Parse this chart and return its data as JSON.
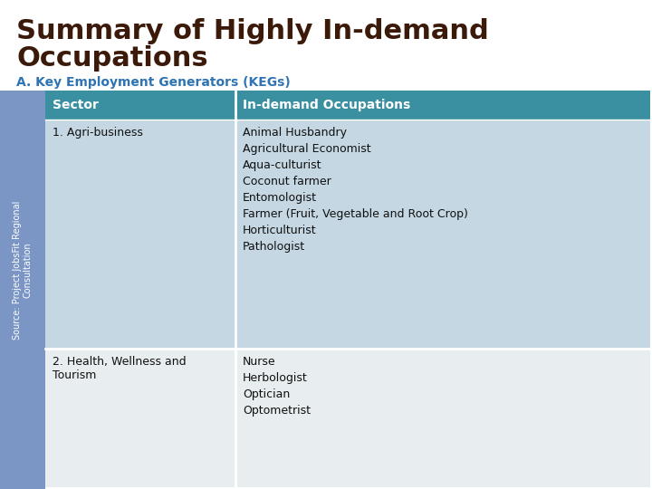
{
  "title_line1": "Summary of Highly In-demand",
  "title_line2": "Occupations",
  "title_color": "#3B1A0A",
  "subtitle": "A. Key Employment Generators (KEGs)",
  "subtitle_color": "#2E74B5",
  "header_bg_color": "#3A8FA0",
  "header_text_color": "#FFFFFF",
  "col1_header": "Sector",
  "col2_header": "In-demand Occupations",
  "row1_sector": "1. Agri-business",
  "row1_occupations": [
    "Animal Husbandry",
    "Agricultural Economist",
    "Aqua-culturist",
    "Coconut farmer",
    "Entomologist",
    "Farmer (Fruit, Vegetable and Root Crop)",
    "Horticulturist",
    "Pathologist"
  ],
  "row2_sector": "2. Health, Wellness and\nTourism",
  "row2_occupations": [
    "Nurse",
    "Herbologist",
    "Optician",
    "Optometrist"
  ],
  "row1_bg": "#C5D7E3",
  "row2_bg": "#E8EDEF",
  "sidebar_color": "#7B96C4",
  "source_text": "Source: Project JobsFit Regional\nConsultation",
  "source_color": "#FFFFFF",
  "bg_color": "#FFFFFF",
  "title_fontsize": 22,
  "subtitle_fontsize": 10,
  "header_fontsize": 10,
  "body_fontsize": 9
}
